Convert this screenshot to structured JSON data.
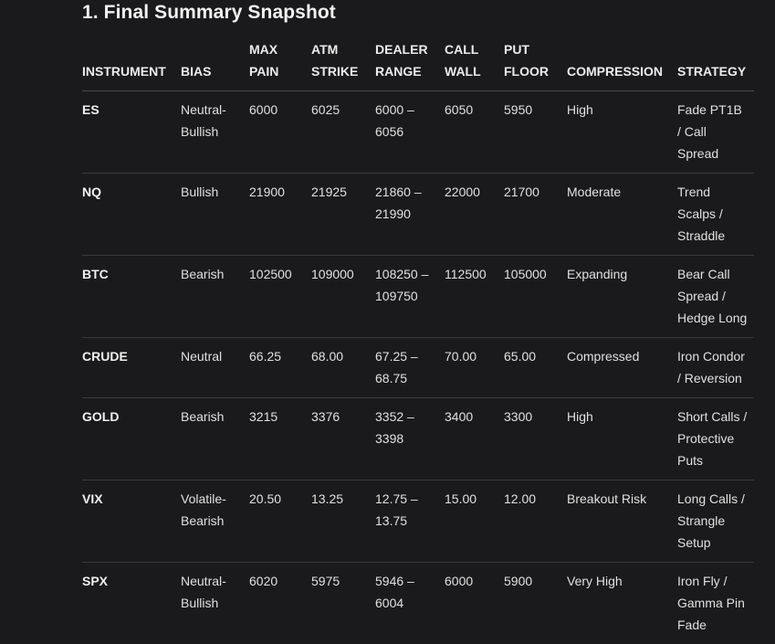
{
  "section_title": "1. Final Summary Snapshot",
  "columns": [
    "INSTRUMENT",
    "BIAS",
    "MAX\nPAIN",
    "ATM\nSTRIKE",
    "DEALER\nRANGE",
    "CALL\nWALL",
    "PUT\nFLOOR",
    "COMPRESSION",
    "STRATEGY"
  ],
  "rows": [
    [
      "ES",
      "Neutral-Bullish",
      "6000",
      "6025",
      "6000 – 6056",
      "6050",
      "5950",
      "High",
      "Fade PT1B / Call Spread"
    ],
    [
      "NQ",
      "Bullish",
      "21900",
      "21925",
      "21860 – 21990",
      "22000",
      "21700",
      "Moderate",
      "Trend Scalps / Straddle"
    ],
    [
      "BTC",
      "Bearish",
      "102500",
      "109000",
      "108250 – 109750",
      "112500",
      "105000",
      "Expanding",
      "Bear Call Spread / Hedge Long"
    ],
    [
      "CRUDE",
      "Neutral",
      "66.25",
      "68.00",
      "67.25 – 68.75",
      "70.00",
      "65.00",
      "Compressed",
      "Iron Condor / Reversion"
    ],
    [
      "GOLD",
      "Bearish",
      "3215",
      "3376",
      "3352 – 3398",
      "3400",
      "3300",
      "High",
      "Short Calls / Protective Puts"
    ],
    [
      "VIX",
      "Volatile-Bearish",
      "20.50",
      "13.25",
      "12.75 – 13.75",
      "15.00",
      "12.00",
      "Breakout Risk",
      "Long Calls / Strangle Setup"
    ],
    [
      "SPX",
      "Neutral-Bullish",
      "6020",
      "5975",
      "5946 – 6004",
      "6000",
      "5900",
      "Very High",
      "Iron Fly / Gamma Pin Fade"
    ]
  ]
}
